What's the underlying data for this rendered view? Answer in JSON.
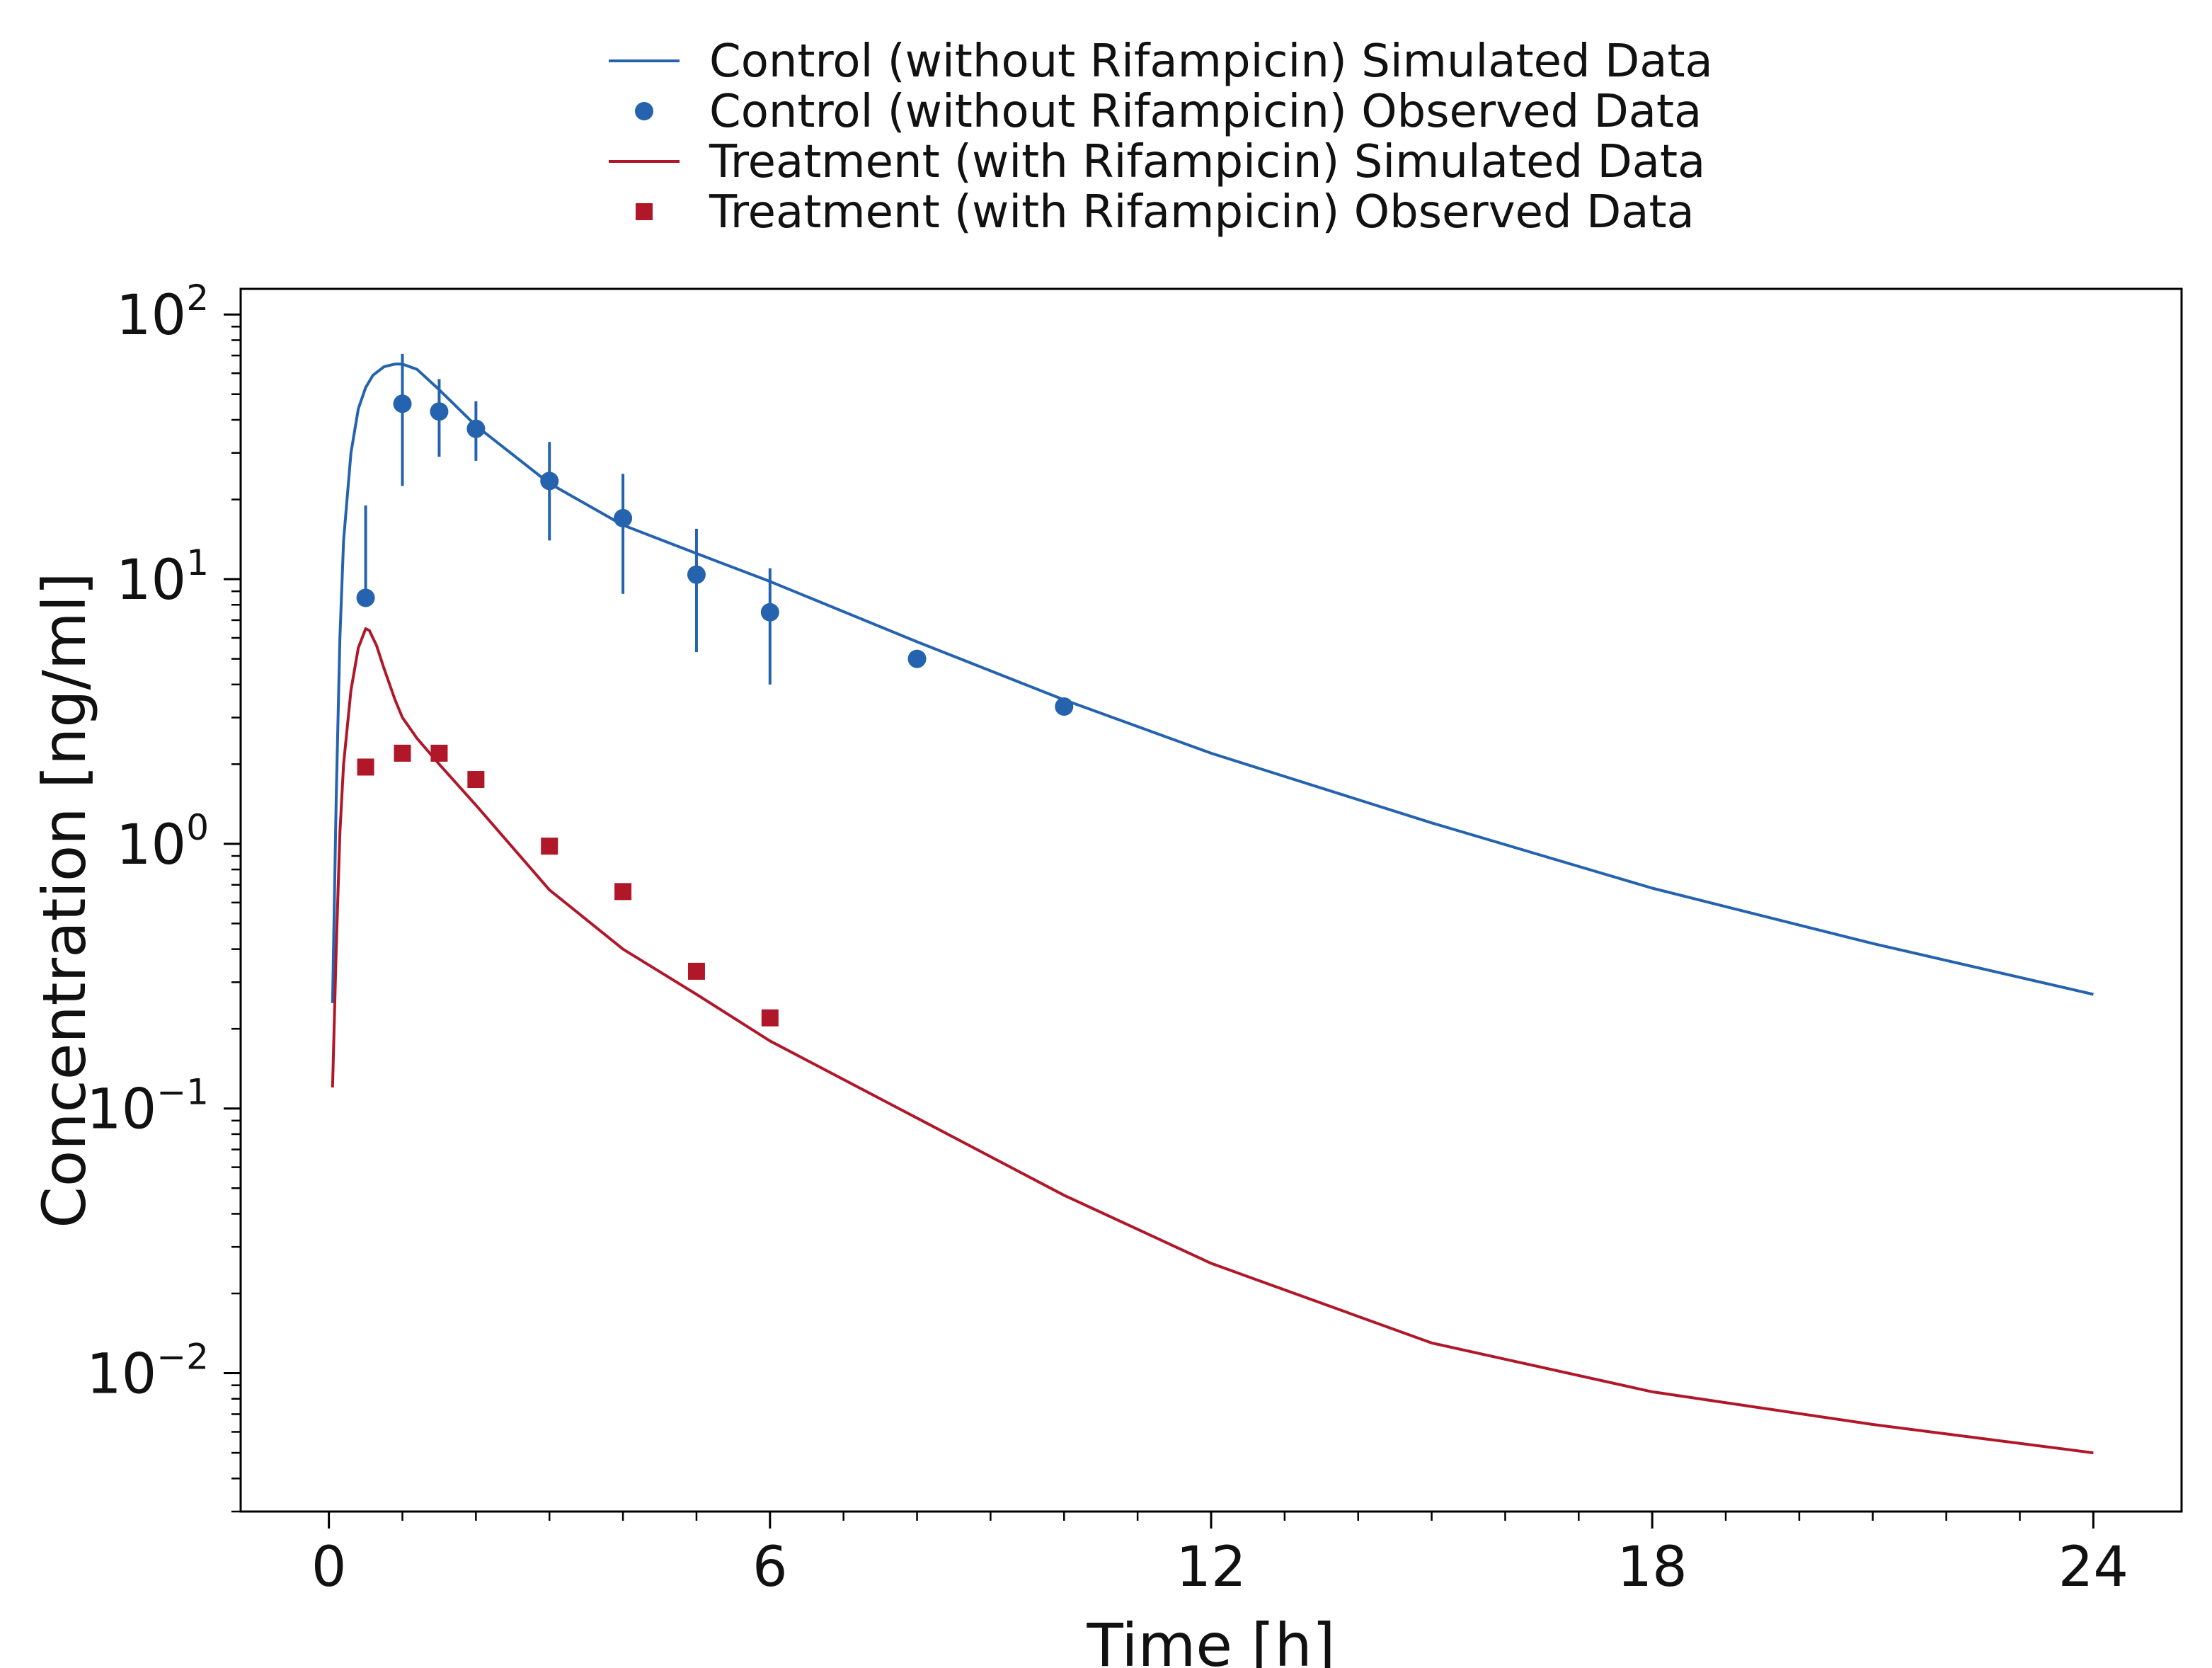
{
  "colors": {
    "control": "#2563ae",
    "treatment": "#b0182a",
    "axis": "#000000",
    "background": "#ffffff"
  },
  "chart_data": {
    "type": "line",
    "title": "",
    "xlabel": "Time [h]",
    "ylabel": "Concentration [ng/ml]",
    "xlim": [
      -1.2,
      25.2
    ],
    "ylim": [
      0.003,
      125
    ],
    "yscale": "log",
    "grid": false,
    "legend_position": "top-center",
    "x_ticks": [
      0,
      6,
      12,
      18,
      24
    ],
    "x_tick_labels": [
      "0",
      "6",
      "12",
      "18",
      "24"
    ],
    "y_ticks": [
      {
        "value": 0.01,
        "base": "10",
        "exp": "−2"
      },
      {
        "value": 0.1,
        "base": "10",
        "exp": "−1"
      },
      {
        "value": 1,
        "base": "10",
        "exp": "0"
      },
      {
        "value": 10,
        "base": "10",
        "exp": "1"
      },
      {
        "value": 100,
        "base": "10",
        "exp": "2"
      }
    ],
    "legend": [
      {
        "label": "Control (without Rifampicin) Simulated Data",
        "series": "control_sim",
        "symbol": "line"
      },
      {
        "label": "Control (without Rifampicin) Observed Data",
        "series": "control_obs",
        "symbol": "circle"
      },
      {
        "label": "Treatment (with Rifampicin) Simulated Data",
        "series": "treatment_sim",
        "symbol": "line"
      },
      {
        "label": "Treatment (with Rifampicin) Observed Data",
        "series": "treatment_obs",
        "symbol": "square"
      }
    ],
    "series": [
      {
        "id": "control_sim",
        "name": "Control (without Rifampicin) Simulated Data",
        "kind": "line",
        "color": "#2563ae",
        "x": [
          0.05,
          0.1,
          0.15,
          0.2,
          0.3,
          0.4,
          0.5,
          0.6,
          0.75,
          0.9,
          1.0,
          1.2,
          1.5,
          2,
          3,
          4,
          5,
          6,
          8,
          10,
          12,
          15,
          18,
          21,
          24
        ],
        "y": [
          0.25,
          1.5,
          6.0,
          14.0,
          30.0,
          44.0,
          53.0,
          59.0,
          63.5,
          65.0,
          65.0,
          62.0,
          52.0,
          38.0,
          23.0,
          16.0,
          12.5,
          9.8,
          5.8,
          3.5,
          2.2,
          1.2,
          0.68,
          0.42,
          0.27
        ]
      },
      {
        "id": "control_obs",
        "name": "Control (without Rifampicin) Observed Data",
        "kind": "points",
        "marker": "circle",
        "color": "#2563ae",
        "x": [
          0.5,
          1.0,
          1.5,
          2.0,
          3.0,
          4.0,
          5.0,
          6.0,
          8.0,
          10.0
        ],
        "y": [
          8.5,
          46.0,
          43.0,
          37.0,
          23.5,
          17.0,
          10.4,
          7.5,
          5.0,
          3.3
        ],
        "err_low": [
          8.5,
          22.5,
          29.0,
          28.0,
          14.0,
          8.8,
          5.3,
          4.0,
          null,
          null
        ],
        "err_high": [
          19.0,
          71.0,
          57.0,
          47.0,
          33.0,
          25.0,
          15.5,
          11.0,
          null,
          null
        ]
      },
      {
        "id": "treatment_sim",
        "name": "Treatment (with Rifampicin) Simulated Data",
        "kind": "line",
        "color": "#b0182a",
        "x": [
          0.05,
          0.1,
          0.15,
          0.2,
          0.3,
          0.4,
          0.5,
          0.55,
          0.65,
          0.75,
          0.9,
          1.0,
          1.2,
          1.5,
          2,
          3,
          4,
          5,
          6,
          8,
          10,
          12,
          15,
          18,
          21,
          24
        ],
        "y": [
          0.12,
          0.4,
          1.1,
          2.0,
          3.8,
          5.5,
          6.5,
          6.4,
          5.6,
          4.6,
          3.5,
          3.0,
          2.5,
          2.0,
          1.4,
          0.67,
          0.4,
          0.27,
          0.18,
          0.092,
          0.047,
          0.026,
          0.013,
          0.0085,
          0.0064,
          0.005
        ]
      },
      {
        "id": "treatment_obs",
        "name": "Treatment (with Rifampicin) Observed Data",
        "kind": "points",
        "marker": "square",
        "color": "#b0182a",
        "x": [
          0.5,
          1.0,
          1.5,
          2.0,
          3.0,
          4.0,
          5.0,
          6.0
        ],
        "y": [
          1.95,
          2.2,
          2.2,
          1.75,
          0.98,
          0.66,
          0.33,
          0.22
        ]
      }
    ]
  }
}
